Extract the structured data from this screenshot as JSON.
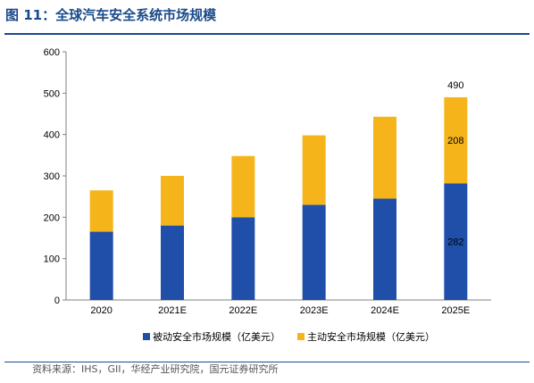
{
  "figure_title": "图 11：全球汽车安全系统市场规模",
  "source": "资料来源：IHS，GII，华经产业研究院，国元证券研究所",
  "colors": {
    "title": "#1a4a8a",
    "passive": "#1f4fa8",
    "active": "#f5b51a",
    "axis": "#808080",
    "text": "#000000"
  },
  "chart_data": {
    "type": "bar",
    "stacked": true,
    "categories": [
      "2020",
      "2021E",
      "2022E",
      "2023E",
      "2024E",
      "2025E"
    ],
    "series": [
      {
        "name": "被动安全市场规模（亿美元）",
        "values": [
          165,
          180,
          200,
          230,
          245,
          282
        ]
      },
      {
        "name": "主动安全市场规模（亿美元）",
        "values": [
          100,
          120,
          148,
          168,
          198,
          208
        ]
      }
    ],
    "data_labels": [
      {
        "category": "2025E",
        "series": 0,
        "text": "282"
      },
      {
        "category": "2025E",
        "series": 1,
        "text": "208"
      },
      {
        "category": "2025E",
        "series": "total",
        "text": "490"
      }
    ],
    "ylim": [
      0,
      600
    ],
    "yticks": [
      0,
      100,
      200,
      300,
      400,
      500,
      600
    ],
    "grid": false,
    "legend_position": "bottom"
  }
}
